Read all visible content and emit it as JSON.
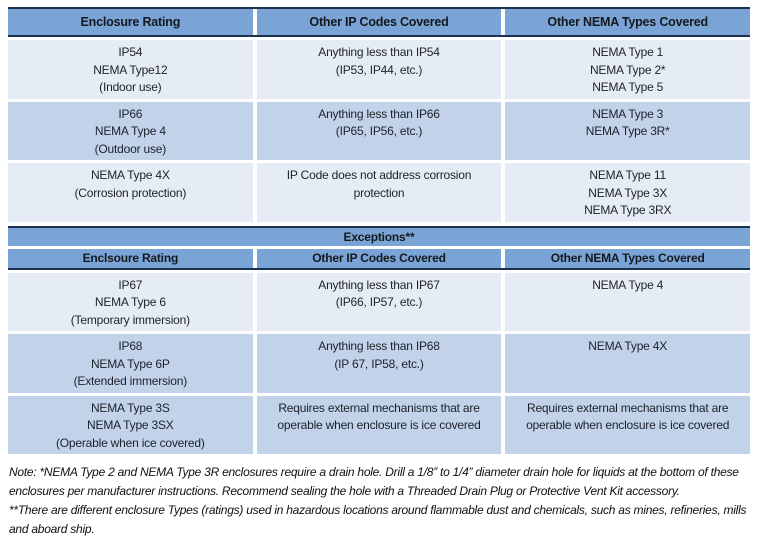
{
  "colors": {
    "header_blue": "#7AA4D6",
    "row_pale": "#E6ECF5",
    "row_medium": "#C2D2E9",
    "border_navy": "#1C3150"
  },
  "table1": {
    "headers": [
      "Enclosure Rating",
      "Other IP Codes Covered",
      "Other NEMA Types Covered"
    ],
    "rows": [
      {
        "shade": "pale",
        "cells": [
          [
            "IP54",
            "NEMA Type12",
            "(Indoor use)"
          ],
          [
            "Anything less than IP54",
            "(IP53, IP44, etc.)"
          ],
          [
            "NEMA Type 1",
            "NEMA Type 2*",
            "NEMA Type 5"
          ]
        ]
      },
      {
        "shade": "medium",
        "cells": [
          [
            "IP66",
            "NEMA Type 4",
            "(Outdoor use)"
          ],
          [
            "Anything less than IP66",
            "(IP65, IP56, etc.)"
          ],
          [
            "NEMA Type 3",
            "NEMA Type 3R*"
          ]
        ]
      },
      {
        "shade": "pale",
        "cells": [
          [
            "NEMA Type 4X",
            "(Corrosion protection)"
          ],
          [
            "IP Code does not address corrosion protection"
          ],
          [
            "NEMA Type 11",
            "NEMA Type 3X",
            "NEMA Type 3RX"
          ]
        ]
      }
    ]
  },
  "table2": {
    "banner": "Exceptions**",
    "headers": [
      "Enclsoure Rating",
      "Other IP Codes Covered",
      "Other NEMA Types Covered"
    ],
    "rows": [
      {
        "shade": "pale",
        "cells": [
          [
            "IP67",
            "NEMA Type 6",
            "(Temporary immersion)"
          ],
          [
            "Anything less than IP67",
            "(IP66, IP57, etc.)"
          ],
          [
            "NEMA Type 4"
          ]
        ]
      },
      {
        "shade": "medium",
        "cells": [
          [
            "IP68",
            "NEMA Type 6P",
            "(Extended immersion)"
          ],
          [
            "Anything less than IP68",
            "(IP 67, IP58, etc.)"
          ],
          [
            "NEMA Type 4X"
          ]
        ]
      },
      {
        "shade": "medium",
        "cells": [
          [
            "NEMA Type 3S",
            "NEMA Type 3SX",
            "(Operable when ice covered)"
          ],
          [
            "Requires external mechanisms that are",
            "operable when enclosure is ice covered"
          ],
          [
            "Requires external mechanisms that are",
            "operable when enclosure is ice covered"
          ]
        ]
      }
    ]
  },
  "note": {
    "paragraphs": [
      "Note: *NEMA Type 2 and NEMA Type 3R enclosures require a drain hole. Drill a 1/8” to 1/4” diameter drain hole for liquids at the bottom of these enclosures per manufacturer instructions. Recommend sealing the hole with a Threaded Drain Plug or Protective Vent Kit accessory.",
      "**There are different enclosure Types (ratings) used in hazardous locations around flammable dust and chemicals, such as mines, refineries, mills and aboard ship."
    ]
  }
}
